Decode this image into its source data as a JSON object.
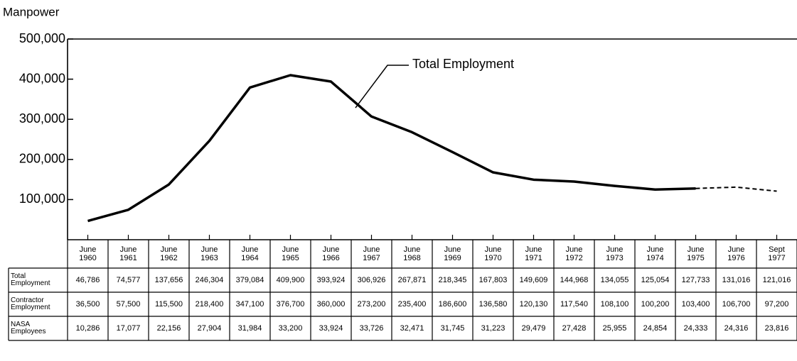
{
  "chart_data": {
    "type": "line",
    "title": "Manpower",
    "categories": [
      "June 1960",
      "June 1961",
      "June 1962",
      "June 1963",
      "June 1964",
      "June 1965",
      "June 1966",
      "June 1967",
      "June 1968",
      "June 1969",
      "June 1970",
      "June 1971",
      "June 1972",
      "June 1973",
      "June 1974",
      "June 1975",
      "June 1976",
      "Sept 1977"
    ],
    "series": [
      {
        "name": "Total Employment",
        "color": "#000000",
        "values": [
          46786,
          74577,
          137656,
          246304,
          379084,
          409900,
          393924,
          306926,
          267871,
          218345,
          167803,
          149609,
          144968,
          134055,
          125054,
          127733,
          131016,
          121016
        ],
        "value_labels": [
          "46,786",
          "74,577",
          "137,656",
          "246,304",
          "379,084",
          "409,900",
          "393,924",
          "306,926",
          "267,871",
          "218,345",
          "167,803",
          "149,609",
          "144,968",
          "134,055",
          "125,054",
          "127,733",
          "131,016",
          "121,016"
        ]
      }
    ],
    "dashed_after": "June 1975",
    "annotation": "Total Employment",
    "table_series": [
      {
        "name": "Contractor Employment",
        "values": [
          36500,
          57500,
          115500,
          218400,
          347100,
          376700,
          360000,
          273200,
          235400,
          186600,
          136580,
          120130,
          117540,
          108100,
          100200,
          103400,
          106700,
          97200
        ],
        "value_labels": [
          "36,500",
          "57,500",
          "115,500",
          "218,400",
          "347,100",
          "376,700",
          "360,000",
          "273,200",
          "235,400",
          "186,600",
          "136,580",
          "120,130",
          "117,540",
          "108,100",
          "100,200",
          "103,400",
          "106,700",
          "97,200"
        ]
      },
      {
        "name": "NASA Employees",
        "values": [
          10286,
          17077,
          22156,
          27904,
          31984,
          33200,
          33924,
          33726,
          32471,
          31745,
          31223,
          29479,
          27428,
          25955,
          24854,
          24333,
          24316,
          23816
        ],
        "value_labels": [
          "10,286",
          "17,077",
          "22,156",
          "27,904",
          "31,984",
          "33,200",
          "33,924",
          "33,726",
          "32,471",
          "31,745",
          "31,223",
          "29,479",
          "27,428",
          "25,955",
          "24,854",
          "24,333",
          "24,316",
          "23,816"
        ]
      }
    ],
    "ylim": [
      0,
      500000
    ],
    "yticks": [
      {
        "value": 100000,
        "label": "100,000"
      },
      {
        "value": 200000,
        "label": "200,000"
      },
      {
        "value": 300000,
        "label": "300,000"
      },
      {
        "value": 400000,
        "label": "400,000"
      },
      {
        "value": 500000,
        "label": "500,000"
      }
    ]
  }
}
